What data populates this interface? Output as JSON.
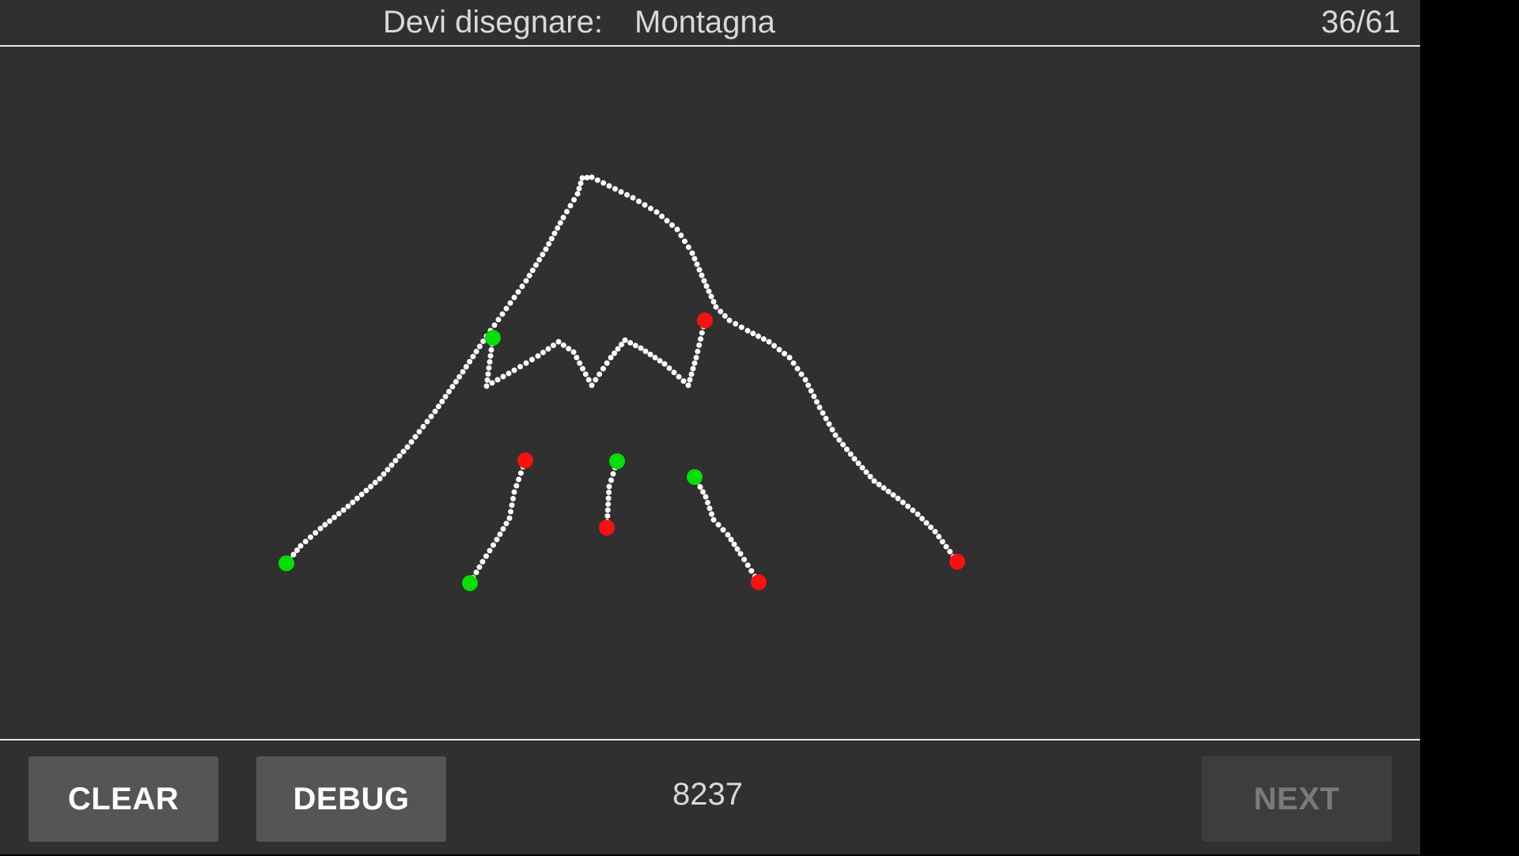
{
  "header": {
    "prompt_label": "Devi disegnare:",
    "prompt_word": "Montagna",
    "progress": "36/61"
  },
  "footer": {
    "clear_label": "CLEAR",
    "debug_label": "DEBUG",
    "score": "8237",
    "next_label": "NEXT"
  },
  "colors": {
    "background": "#303030",
    "stroke": "#ffffff",
    "start_point": "#00e000",
    "end_point": "#ff1010",
    "button": "#555557",
    "button_disabled": "#3d3d3f"
  }
}
